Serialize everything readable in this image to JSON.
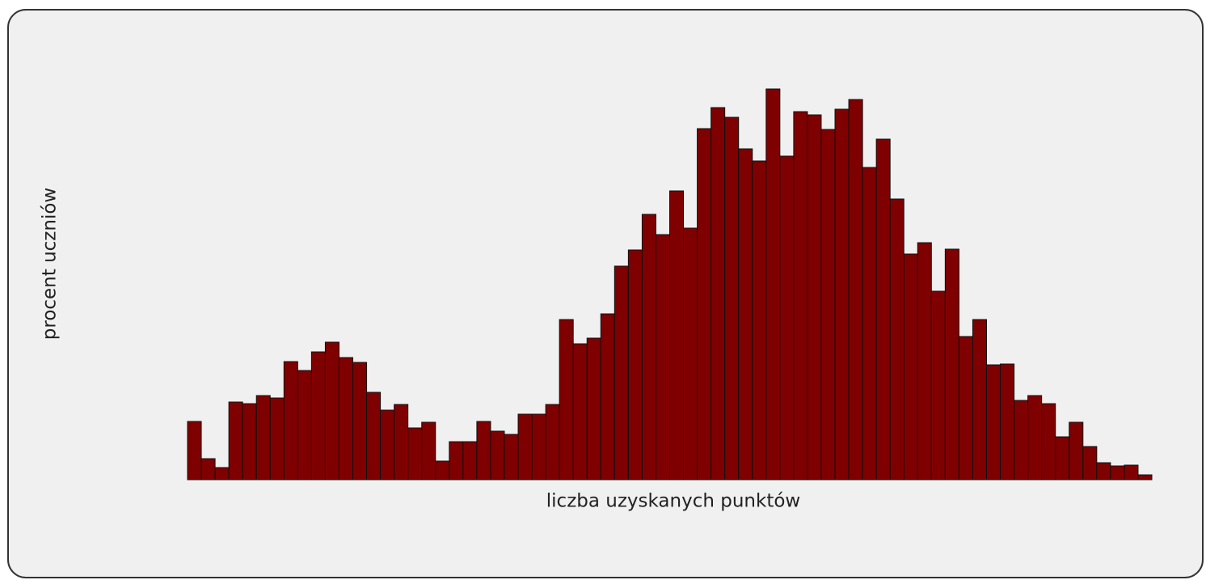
{
  "chart_data": {
    "type": "bar",
    "x_label": "liczba uzyskanych punktów",
    "y_label": "procent uczniów",
    "color": "#7f0000",
    "ylim": [
      0,
      500
    ],
    "values": [
      72,
      26,
      15,
      96,
      94,
      104,
      101,
      146,
      135,
      158,
      170,
      151,
      145,
      108,
      86,
      93,
      64,
      71,
      23,
      47,
      47,
      72,
      60,
      56,
      81,
      81,
      93,
      198,
      168,
      175,
      205,
      264,
      284,
      328,
      303,
      357,
      311,
      434,
      460,
      448,
      409,
      394,
      483,
      400,
      455,
      451,
      433,
      458,
      470,
      386,
      421,
      347,
      279,
      293,
      233,
      285,
      177,
      198,
      142,
      143,
      98,
      104,
      94,
      53,
      71,
      41,
      21,
      17,
      18,
      6
    ]
  }
}
